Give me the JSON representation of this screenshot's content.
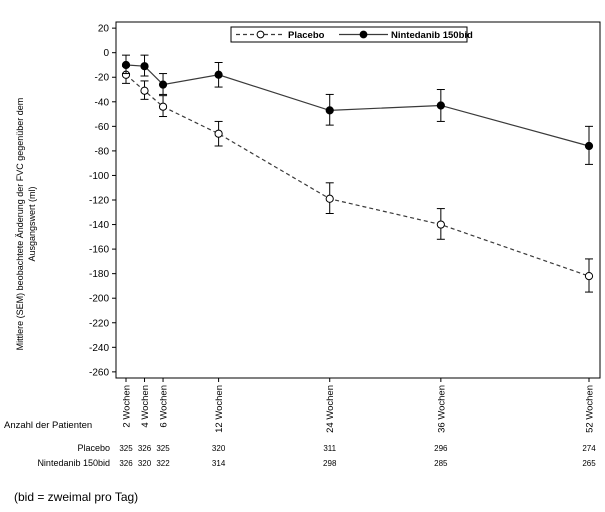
{
  "chart_data": {
    "type": "line",
    "ylabel": "Mittlere (SEM) beobachtete Änderung der FVC gegenüber dem Ausgangswert (ml)",
    "ylim": [
      -265,
      25
    ],
    "yticks": [
      20,
      0,
      -20,
      -40,
      -60,
      -80,
      -100,
      -120,
      -140,
      -160,
      -180,
      -200,
      -220,
      -240,
      -260
    ],
    "x_weeks": [
      2,
      4,
      6,
      12,
      24,
      36,
      52
    ],
    "x_labels": [
      "2 Wochen",
      "4 Wochen",
      "6 Wochen",
      "12 Wochen",
      "24 Wochen",
      "36 Wochen",
      "52 Wochen"
    ],
    "legend_position": "top",
    "series": [
      {
        "name": "Placebo",
        "style": "dashed-open-circle",
        "values": [
          -18,
          -31,
          -44,
          -66,
          -119,
          -140,
          -182
        ],
        "err_low": [
          -25,
          -38,
          -52,
          -76,
          -131,
          -152,
          -195
        ],
        "err_high": [
          -11,
          -23,
          -35,
          -56,
          -106,
          -127,
          -168
        ]
      },
      {
        "name": "Nintedanib 150bid",
        "style": "solid-filled-circle",
        "values": [
          -10,
          -11,
          -26,
          -18,
          -47,
          -43,
          -76
        ],
        "err_low": [
          -17,
          -19,
          -34,
          -28,
          -59,
          -56,
          -91
        ],
        "err_high": [
          -2,
          -2,
          -17,
          -8,
          -34,
          -30,
          -60
        ]
      }
    ],
    "table": {
      "title": "Anzahl der Patienten",
      "rows": [
        {
          "label": "Placebo",
          "counts": [
            "325",
            "326",
            "325",
            "320",
            "311",
            "296",
            "274"
          ]
        },
        {
          "label": "Nintedanib 150bid",
          "counts": [
            "326",
            "320",
            "322",
            "314",
            "298",
            "285",
            "265"
          ]
        }
      ]
    }
  },
  "footnote": "(bid = zweimal pro Tag)",
  "colors": {
    "axis": "#000000",
    "line": "#3a3a3a"
  }
}
